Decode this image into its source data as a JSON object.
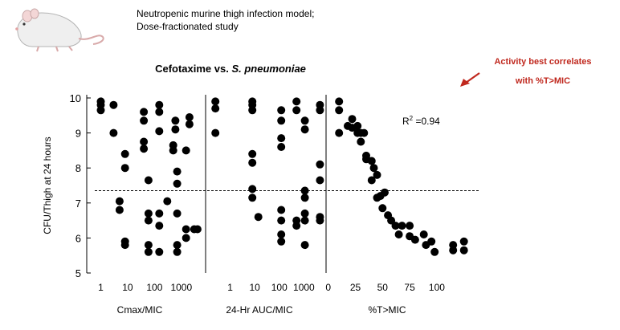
{
  "header": {
    "line1": "Neutropenic murine thigh infection model;",
    "line2": "Dose-fractionated study"
  },
  "icon": "mouse-icon",
  "chart_data": {
    "type": "scatter",
    "title_prefix": "Cefotaxime vs. ",
    "title_italic": "S. pneumoniae",
    "ylabel": "CFU/Thigh at 24 hours",
    "ylim": [
      5,
      10
    ],
    "yticks": [
      5,
      6,
      7,
      8,
      9,
      10
    ],
    "reference_line_y": 7.35,
    "r_squared_label": "R",
    "r_squared_sup": "2",
    "r_squared_value": " =0.94",
    "annotation": {
      "line1": "Activity best correlates",
      "line2": "with %T>MIC",
      "color": "#c0281e"
    },
    "panels": [
      {
        "xlabel": "Cmax/MIC",
        "xscale": "log",
        "xlim": [
          0.3,
          8000
        ],
        "xticks": [
          1,
          10,
          100,
          1000
        ],
        "points": [
          [
            1,
            9.9
          ],
          [
            1,
            9.8
          ],
          [
            1,
            9.65
          ],
          [
            3,
            9.8
          ],
          [
            3,
            9
          ],
          [
            5,
            7.05
          ],
          [
            5,
            6.8
          ],
          [
            8,
            8.4
          ],
          [
            8,
            8
          ],
          [
            8,
            5.9
          ],
          [
            8,
            5.8
          ],
          [
            40,
            9.6
          ],
          [
            40,
            9.35
          ],
          [
            40,
            8.75
          ],
          [
            40,
            8.55
          ],
          [
            60,
            7.65
          ],
          [
            60,
            6.7
          ],
          [
            60,
            6.5
          ],
          [
            60,
            5.8
          ],
          [
            60,
            5.6
          ],
          [
            150,
            9.8
          ],
          [
            150,
            9.6
          ],
          [
            150,
            9.05
          ],
          [
            150,
            6.7
          ],
          [
            150,
            6.35
          ],
          [
            150,
            5.6
          ],
          [
            300,
            7.05
          ],
          [
            500,
            8.65
          ],
          [
            500,
            8.5
          ],
          [
            600,
            9.35
          ],
          [
            600,
            9.1
          ],
          [
            700,
            7.9
          ],
          [
            700,
            7.55
          ],
          [
            700,
            6.7
          ],
          [
            700,
            5.8
          ],
          [
            700,
            5.6
          ],
          [
            1500,
            6.25
          ],
          [
            1500,
            6
          ],
          [
            1500,
            8.5
          ],
          [
            2000,
            9.45
          ],
          [
            2000,
            9.25
          ],
          [
            3000,
            6.25
          ],
          [
            4000,
            6.25
          ]
        ]
      },
      {
        "xlabel": "24-Hr AUC/MIC",
        "xscale": "log",
        "xlim": [
          0.1,
          8000
        ],
        "xticks": [
          1,
          10,
          100,
          1000
        ],
        "points": [
          [
            0.25,
            9.9
          ],
          [
            0.25,
            9.7
          ],
          [
            0.25,
            9
          ],
          [
            8,
            9.9
          ],
          [
            8,
            9.8
          ],
          [
            8,
            9.65
          ],
          [
            8,
            8.4
          ],
          [
            8,
            8.15
          ],
          [
            8,
            7.4
          ],
          [
            8,
            7.15
          ],
          [
            14,
            6.6
          ],
          [
            120,
            9.65
          ],
          [
            120,
            9.35
          ],
          [
            120,
            8.85
          ],
          [
            120,
            8.6
          ],
          [
            120,
            6.8
          ],
          [
            120,
            6.5
          ],
          [
            120,
            6.1
          ],
          [
            120,
            5.9
          ],
          [
            500,
            9.9
          ],
          [
            500,
            9.65
          ],
          [
            500,
            6.5
          ],
          [
            500,
            6.35
          ],
          [
            1100,
            9.35
          ],
          [
            1100,
            9.1
          ],
          [
            1100,
            7.35
          ],
          [
            1100,
            7.15
          ],
          [
            1100,
            6.7
          ],
          [
            1100,
            6.5
          ],
          [
            1100,
            5.8
          ],
          [
            4500,
            9.8
          ],
          [
            4500,
            9.65
          ],
          [
            4500,
            8.1
          ],
          [
            4500,
            7.65
          ],
          [
            4500,
            6.6
          ],
          [
            4500,
            6.5
          ]
        ]
      },
      {
        "xlabel": "%T>MIC",
        "xscale": "linear",
        "xlim": [
          -2,
          140
        ],
        "xticks": [
          0,
          25,
          50,
          75,
          100
        ],
        "points": [
          [
            10,
            9.9
          ],
          [
            10,
            9.65
          ],
          [
            10,
            9
          ],
          [
            18,
            9.2
          ],
          [
            22,
            9.4
          ],
          [
            22,
            9.15
          ],
          [
            27,
            9.2
          ],
          [
            27,
            9
          ],
          [
            30,
            8.75
          ],
          [
            30,
            9
          ],
          [
            33,
            9
          ],
          [
            35,
            8.35
          ],
          [
            35,
            8.25
          ],
          [
            40,
            7.65
          ],
          [
            40,
            8.2
          ],
          [
            42,
            8
          ],
          [
            45,
            7.8
          ],
          [
            45,
            7.15
          ],
          [
            48,
            7.2
          ],
          [
            52,
            7.3
          ],
          [
            50,
            6.85
          ],
          [
            55,
            6.65
          ],
          [
            58,
            6.5
          ],
          [
            62,
            6.35
          ],
          [
            68,
            6.35
          ],
          [
            65,
            6.1
          ],
          [
            75,
            6.35
          ],
          [
            75,
            6.05
          ],
          [
            80,
            5.95
          ],
          [
            88,
            6.1
          ],
          [
            90,
            5.8
          ],
          [
            95,
            5.9
          ],
          [
            98,
            5.6
          ],
          [
            115,
            5.8
          ],
          [
            115,
            5.65
          ],
          [
            125,
            5.9
          ],
          [
            125,
            5.65
          ]
        ]
      }
    ]
  }
}
